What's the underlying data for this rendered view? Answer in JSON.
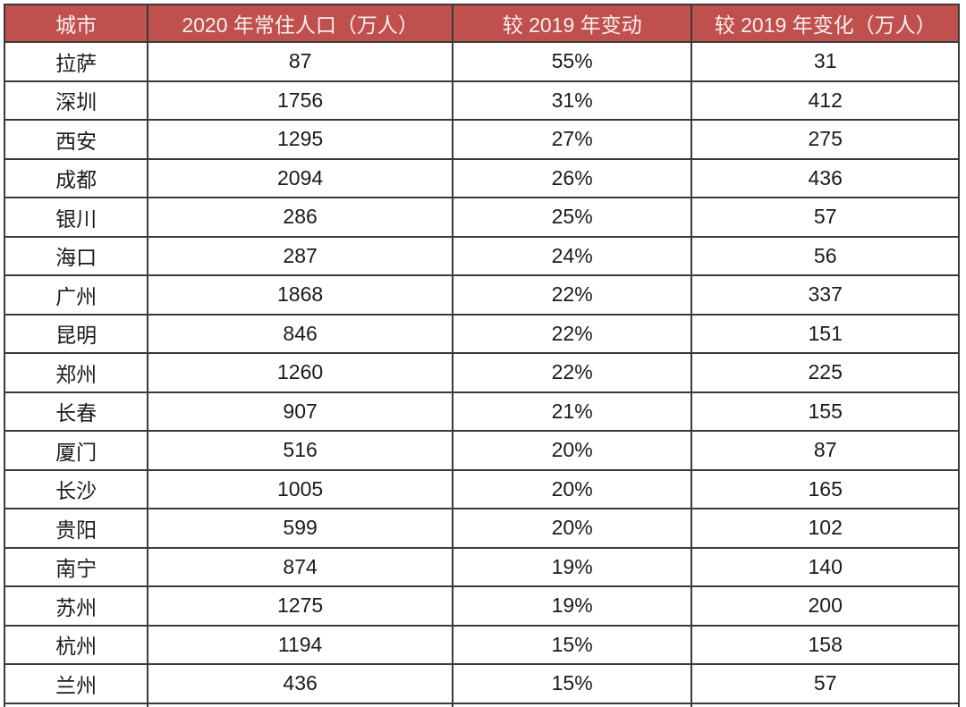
{
  "table": {
    "columns": [
      {
        "label": "城市"
      },
      {
        "label": "2020 年常住人口（万人）"
      },
      {
        "label": "较 2019 年变动"
      },
      {
        "label": "较 2019 年变化（万人）"
      }
    ],
    "rows": [
      {
        "city": "拉萨",
        "population_2020": "87",
        "change_pct": "55%",
        "change_abs": "31"
      },
      {
        "city": "深圳",
        "population_2020": "1756",
        "change_pct": "31%",
        "change_abs": "412"
      },
      {
        "city": "西安",
        "population_2020": "1295",
        "change_pct": "27%",
        "change_abs": "275"
      },
      {
        "city": "成都",
        "population_2020": "2094",
        "change_pct": "26%",
        "change_abs": "436"
      },
      {
        "city": "银川",
        "population_2020": "286",
        "change_pct": "25%",
        "change_abs": "57"
      },
      {
        "city": "海口",
        "population_2020": "287",
        "change_pct": "24%",
        "change_abs": "56"
      },
      {
        "city": "广州",
        "population_2020": "1868",
        "change_pct": "22%",
        "change_abs": "337"
      },
      {
        "city": "昆明",
        "population_2020": "846",
        "change_pct": "22%",
        "change_abs": "151"
      },
      {
        "city": "郑州",
        "population_2020": "1260",
        "change_pct": "22%",
        "change_abs": "225"
      },
      {
        "city": "长春",
        "population_2020": "907",
        "change_pct": "21%",
        "change_abs": "155"
      },
      {
        "city": "厦门",
        "population_2020": "516",
        "change_pct": "20%",
        "change_abs": "87"
      },
      {
        "city": "长沙",
        "population_2020": "1005",
        "change_pct": "20%",
        "change_abs": "165"
      },
      {
        "city": "贵阳",
        "population_2020": "599",
        "change_pct": "20%",
        "change_abs": "102"
      },
      {
        "city": "南宁",
        "population_2020": "874",
        "change_pct": "19%",
        "change_abs": "140"
      },
      {
        "city": "苏州",
        "population_2020": "1275",
        "change_pct": "19%",
        "change_abs": "200"
      },
      {
        "city": "杭州",
        "population_2020": "1194",
        "change_pct": "15%",
        "change_abs": "158"
      },
      {
        "city": "兰州",
        "population_2020": "436",
        "change_pct": "15%",
        "change_abs": "57"
      }
    ]
  },
  "colors": {
    "header_bg": "#c0504d",
    "header_text": "#f7efed",
    "border": "#3a3a3a",
    "cell_text": "#1b1b1b",
    "row_bg": "#ffffff"
  }
}
